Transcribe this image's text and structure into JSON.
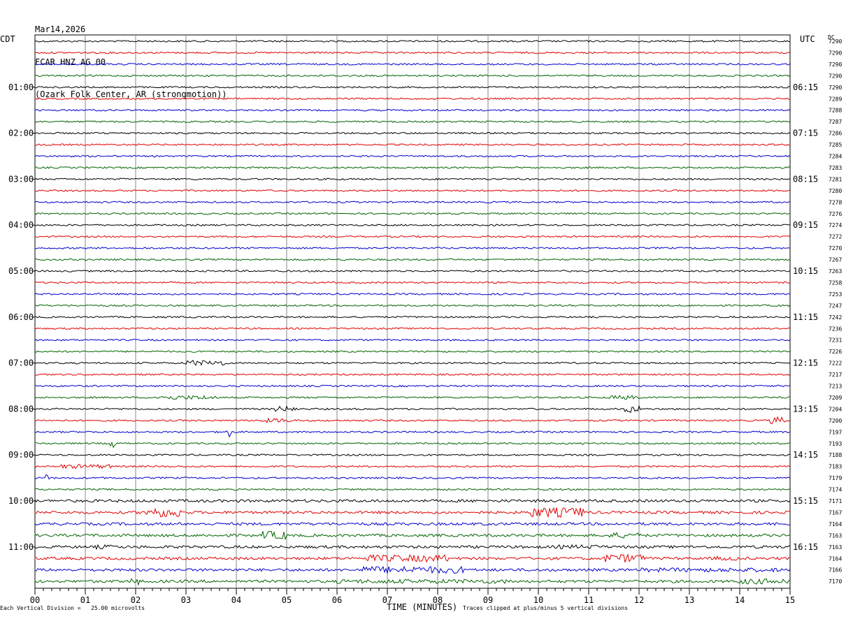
{
  "header": {
    "date": "Mar14,2026",
    "channel": "FCAR HNZ AG 00",
    "location": "(Ozark Folk Center, AR (strongmotion))"
  },
  "left_zone": "CDT",
  "right_zone": "UTC",
  "dc_label": "DC",
  "footer": {
    "scale_prefix": "Each Vertical Division =",
    "scale_value": "25.00 microvolts",
    "time_label": "TIME (MINUTES)",
    "clip_note": "Traces clipped at plus/minus 5 vertical divisions"
  },
  "chart_data": {
    "type": "line",
    "title": "FCAR HNZ AG 00",
    "xlabel": "TIME (MINUTES)",
    "x_ticks": [
      "00",
      "01",
      "02",
      "03",
      "04",
      "05",
      "06",
      "07",
      "08",
      "09",
      "10",
      "11",
      "12",
      "13",
      "14",
      "15"
    ],
    "xlim": [
      0,
      15
    ],
    "trace_colors": [
      "#000000",
      "#e00000",
      "#0000cc",
      "#006400"
    ],
    "left_hour_labels": [
      "01:00",
      "02:00",
      "03:00",
      "04:00",
      "05:00",
      "06:00",
      "07:00",
      "08:00",
      "09:00",
      "10:00",
      "11:00"
    ],
    "right_hour_labels": [
      "06:15",
      "07:15",
      "08:15",
      "09:15",
      "10:15",
      "11:15",
      "12:15",
      "13:15",
      "14:15",
      "15:15",
      "16:15"
    ],
    "dc_offsets": [
      7290,
      7290,
      7290,
      7290,
      7290,
      7289,
      7288,
      7287,
      7286,
      7285,
      7284,
      7283,
      7281,
      7280,
      7278,
      7276,
      7274,
      7272,
      7270,
      7267,
      7263,
      7258,
      7253,
      7247,
      7242,
      7236,
      7231,
      7226,
      7222,
      7217,
      7213,
      7209,
      7204,
      7200,
      7197,
      7193,
      7188,
      7183,
      7179,
      7174,
      7171,
      7167,
      7164,
      7163,
      7163,
      7164,
      7166,
      7170
    ]
  }
}
